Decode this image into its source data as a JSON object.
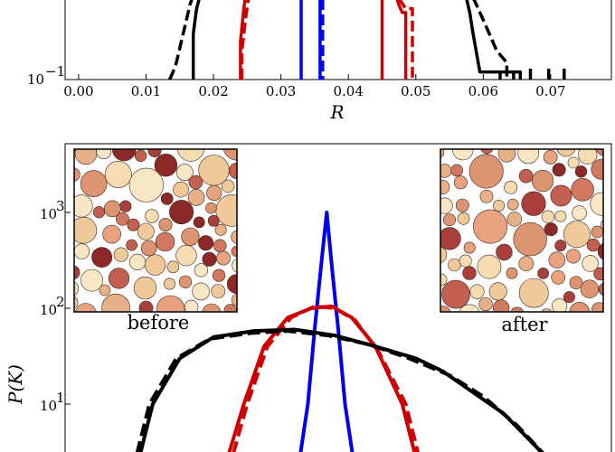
{
  "chart_data": [
    {
      "type": "line",
      "panel": "top",
      "xlabel": "R",
      "ylabel": "",
      "xlim": [
        -0.002,
        0.079
      ],
      "xticks": [
        "0.00",
        "0.01",
        "0.02",
        "0.03",
        "0.04",
        "0.05",
        "0.06",
        "0.07"
      ],
      "yscale": "log",
      "yticks": [
        {
          "label": "10",
          "exp": "−1"
        }
      ],
      "grid": false,
      "series": [
        {
          "color": "#000000",
          "style": "solid",
          "points": [
            [
              0.017,
              0.1
            ],
            [
              0.017,
              0.3
            ],
            [
              0.0175,
              0.55
            ],
            [
              0.018,
              0.75
            ],
            [
              0.0185,
              1.0
            ]
          ]
        },
        {
          "color": "#000000",
          "style": "dashed",
          "points": [
            [
              0.0135,
              0.1
            ],
            [
              0.014,
              0.12
            ],
            [
              0.0145,
              0.15
            ],
            [
              0.0155,
              0.3
            ],
            [
              0.0165,
              0.6
            ],
            [
              0.0175,
              1.0
            ]
          ]
        },
        {
          "color": "#000000",
          "style": "solid",
          "points": [
            [
              0.057,
              1.0
            ],
            [
              0.058,
              0.5
            ],
            [
              0.0585,
              0.3
            ],
            [
              0.0595,
              0.12
            ],
            [
              0.0625,
              0.12
            ],
            [
              0.0625,
              0.09
            ],
            [
              0.0625,
              0.12
            ],
            [
              0.0645,
              0.12
            ],
            [
              0.0645,
              0.09
            ],
            [
              0.0645,
              0.12
            ],
            [
              0.0655,
              0.12
            ],
            [
              0.0655,
              0.09
            ]
          ]
        },
        {
          "color": "#000000",
          "style": "dashed",
          "points": [
            [
              0.0575,
              1.0
            ],
            [
              0.059,
              0.6
            ],
            [
              0.0605,
              0.35
            ],
            [
              0.062,
              0.2
            ],
            [
              0.0635,
              0.15
            ],
            [
              0.0635,
              0.09
            ]
          ]
        },
        {
          "color": "#000000",
          "style": "solid",
          "points": [
            [
              0.067,
              0.13
            ],
            [
              0.067,
              0.09
            ]
          ]
        },
        {
          "color": "#000000",
          "style": "solid",
          "points": [
            [
              0.0697,
              0.13
            ],
            [
              0.0697,
              0.09
            ]
          ]
        },
        {
          "color": "#000000",
          "style": "solid",
          "points": [
            [
              0.072,
              0.13
            ],
            [
              0.072,
              0.09
            ]
          ]
        },
        {
          "color": "#cc0000",
          "style": "solid",
          "points": [
            [
              0.024,
              0.1
            ],
            [
              0.024,
              0.25
            ],
            [
              0.0245,
              0.55
            ],
            [
              0.025,
              1.0
            ]
          ]
        },
        {
          "color": "#cc0000",
          "style": "dashed",
          "points": [
            [
              0.0242,
              0.1
            ],
            [
              0.0242,
              0.2
            ],
            [
              0.0248,
              0.45
            ],
            [
              0.0255,
              1.0
            ]
          ]
        },
        {
          "color": "#cc0000",
          "style": "solid",
          "points": [
            [
              0.045,
              1.0
            ],
            [
              0.045,
              0.1
            ]
          ]
        },
        {
          "color": "#cc0000",
          "style": "solid",
          "points": [
            [
              0.0465,
              1.0
            ],
            [
              0.0475,
              0.6
            ],
            [
              0.048,
              0.5
            ],
            [
              0.0485,
              0.5
            ],
            [
              0.0485,
              0.1
            ]
          ]
        },
        {
          "color": "#cc0000",
          "style": "dashed",
          "points": [
            [
              0.047,
              1.0
            ],
            [
              0.0475,
              0.7
            ],
            [
              0.0485,
              0.55
            ],
            [
              0.0495,
              0.55
            ],
            [
              0.0495,
              0.1
            ]
          ]
        },
        {
          "color": "#0000ee",
          "style": "solid",
          "points": [
            [
              0.033,
              1.0
            ],
            [
              0.033,
              0.1
            ]
          ]
        },
        {
          "color": "#0000ee",
          "style": "solid",
          "points": [
            [
              0.0358,
              1.0
            ],
            [
              0.0358,
              0.1
            ]
          ]
        },
        {
          "color": "#0000ee",
          "style": "dashed",
          "points": [
            [
              0.0362,
              1.0
            ],
            [
              0.0362,
              0.1
            ]
          ]
        }
      ]
    },
    {
      "type": "line",
      "panel": "bottom",
      "xlabel": "",
      "ylabel": "P(K)",
      "yscale": "log",
      "yticks": [
        {
          "label": "10",
          "exp": "1"
        },
        {
          "label": "10",
          "exp": "2"
        },
        {
          "label": "10",
          "exp": "3"
        }
      ],
      "grid": false,
      "insets": [
        {
          "caption": "before",
          "position": "top-left"
        },
        {
          "caption": "after",
          "position": "top-right"
        }
      ],
      "series": [
        {
          "color": "#0000ee",
          "style": "solid",
          "points": [
            [
              0.0325,
              2
            ],
            [
              0.034,
              10
            ],
            [
              0.035,
              60
            ],
            [
              0.036,
              300
            ],
            [
              0.0368,
              1000
            ],
            [
              0.0375,
              300
            ],
            [
              0.0385,
              60
            ],
            [
              0.0395,
              10
            ],
            [
              0.041,
              2
            ]
          ]
        },
        {
          "color": "#cc0000",
          "style": "solid",
          "points": [
            [
              0.0215,
              2
            ],
            [
              0.0245,
              10
            ],
            [
              0.0275,
              40
            ],
            [
              0.031,
              80
            ],
            [
              0.0345,
              100
            ],
            [
              0.0375,
              105
            ],
            [
              0.0405,
              80
            ],
            [
              0.044,
              40
            ],
            [
              0.048,
              10
            ],
            [
              0.0505,
              2
            ]
          ]
        },
        {
          "color": "#cc0000",
          "style": "dashed",
          "points": [
            [
              0.0222,
              2
            ],
            [
              0.025,
              10
            ],
            [
              0.028,
              40
            ],
            [
              0.0315,
              80
            ],
            [
              0.035,
              105
            ],
            [
              0.038,
              100
            ],
            [
              0.041,
              75
            ],
            [
              0.0445,
              35
            ],
            [
              0.0485,
              10
            ],
            [
              0.051,
              2
            ]
          ]
        },
        {
          "color": "#000000",
          "style": "solid",
          "points": [
            [
              0.0085,
              2
            ],
            [
              0.011,
              10
            ],
            [
              0.015,
              30
            ],
            [
              0.02,
              50
            ],
            [
              0.026,
              58
            ],
            [
              0.032,
              60
            ],
            [
              0.038,
              52
            ],
            [
              0.044,
              40
            ],
            [
              0.05,
              30
            ],
            [
              0.054,
              22
            ],
            [
              0.058,
              14
            ],
            [
              0.063,
              8
            ],
            [
              0.068,
              3.5
            ],
            [
              0.071,
              2
            ]
          ]
        },
        {
          "color": "#000000",
          "style": "dashed",
          "points": [
            [
              0.008,
              2
            ],
            [
              0.0105,
              10
            ],
            [
              0.0145,
              30
            ],
            [
              0.0195,
              48
            ],
            [
              0.0255,
              55
            ],
            [
              0.031,
              58
            ],
            [
              0.037,
              52
            ],
            [
              0.043,
              42
            ],
            [
              0.049,
              30
            ],
            [
              0.055,
              20
            ],
            [
              0.06,
              12
            ],
            [
              0.065,
              6
            ],
            [
              0.069,
              3
            ],
            [
              0.0715,
              2
            ]
          ]
        }
      ]
    }
  ]
}
